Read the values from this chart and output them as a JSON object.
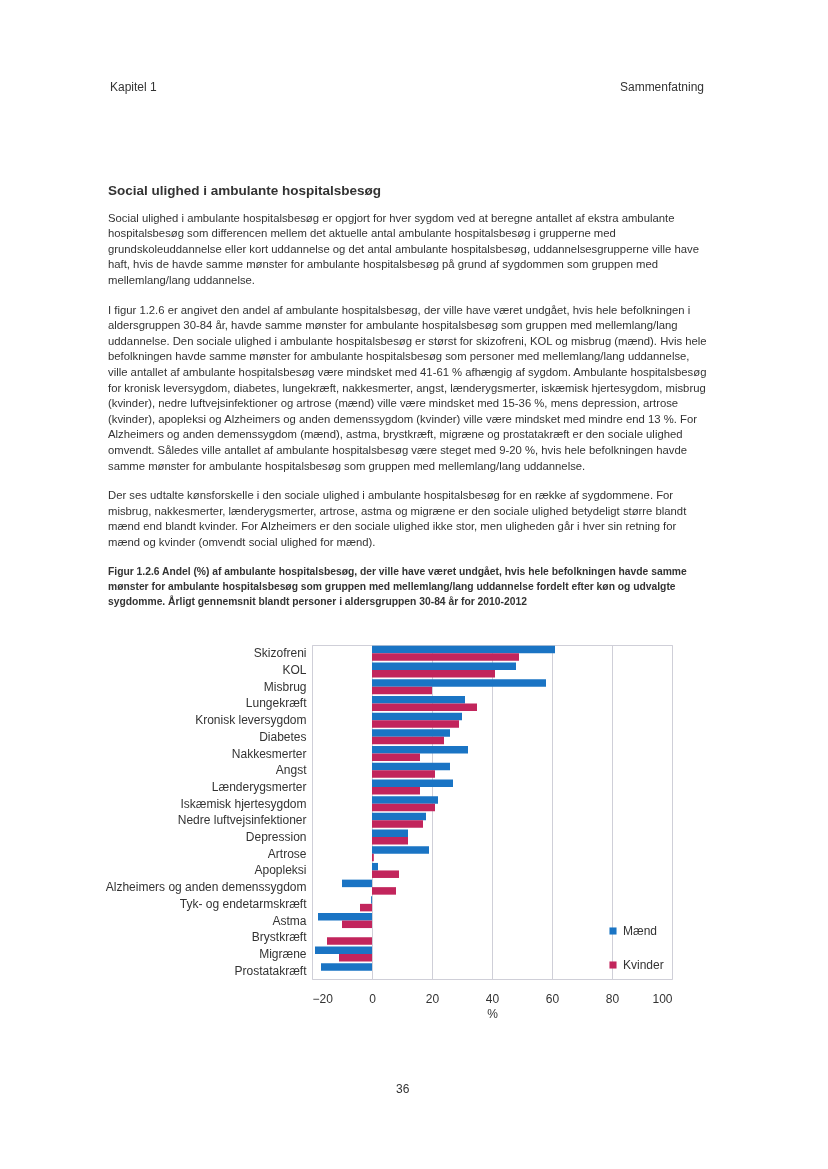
{
  "chart_data": {
    "type": "bar",
    "orientation": "horizontal",
    "title": "Figur 1.2.6   Andel (%) af ambulante hospitalsbesøg, der ville have været undgået, hvis hele befolkningen havde samme mønster for ambulante hospitalsbesøg som gruppen med mellemlang/lang uddannelse fordelt efter køn og udvalgte sygdomme. Årligt gennemsnit blandt personer i aldersgruppen 30-84 år for 2010-2012",
    "xlabel": "%",
    "annotations": [
      "Kapitel 1",
      "Sammenfatning",
      "Social ulighed i ambulante hospitalsbesøg",
      "Social ulighed i ambulante hospitalsbesøg er opgjort for hver sygdom ved at beregne antallet af ekstra ambulante hospitalsbesøg som differencen mellem det aktuelle antal ambulante hospitalsbesøg i grupperne med grundskoleuddannelse eller kort uddannelse og det antal ambulante hospitalsbesøg, uddannelsesgrupperne ville have haft, hvis de havde samme mønster for ambulante hospitalsbesøg på grund af sygdommen som gruppen med mellemlang/lang uddannelse.",
      "I figur 1.2.6 er angivet den andel af ambulante hospitalsbesøg, der ville have været undgået, hvis hele befolkningen i aldersgruppen 30-84 år, havde samme mønster for ambulante hospitalsbesøg som gruppen med mellemlang/lang uddannelse. Den sociale ulighed i ambulante hospitalsbesøg er størst for skizofreni, KOL og misbrug (mænd). Hvis hele befolkningen havde samme mønster for ambulante hospitalsbesøg som personer med mellemlang/lang uddannelse, ville antallet af ambulante hospitalsbesøg være mindsket med 41-61 % afhængig af sygdom. Ambulante hospitalsbesøg for kronisk leversygdom, diabetes, lungekræft, nakkesmerter, angst, lænderygsmerter, iskæmisk hjertesygdom, misbrug (kvinder), nedre luftvejsinfektioner og artrose (mænd) ville være mindsket med 15-36 %, mens depression, artrose (kvinder), apopleksi og Alzheimers og anden demenssygdom (kvinder) ville være mindsket med mindre end 13 %. For Alzheimers og anden demenssygdom (mænd), astma, brystkræft, migræne og prostatakræft er den sociale ulighed omvendt. Således ville antallet af ambulante hospitalsbesøg være steget med 9-20 %, hvis hele befolkningen havde samme mønster for ambulante hospitalsbesøg som gruppen med mellemlang/lang uddannelse.",
      "Der ses udtalte kønsforskelle i den sociale ulighed i ambulante hospitalsbesøg for en række af sygdommene. For misbrug, nakkesmerter, lænderygsmerter, artrose, astma og migræne er den sociale ulighed betydeligt større blandt mænd end blandt kvinder. For Alzheimers er den sociale ulighed ikke stor, men uligheden går i hver sin retning for mænd og kvinder (omvendt social ulighed for mænd).",
      "36"
    ],
    "categories": [
      "Skizofreni",
      "KOL",
      "Misbrug",
      "Lungekræft",
      "Kronisk leversygdom",
      "Diabetes",
      "Nakkesmerter",
      "Angst",
      "Lænderygsmerter",
      "Iskæmisk hjertesygdom",
      "Nedre luftvejsinfektioner",
      "Depression",
      "Artrose",
      "Apopleksi",
      "Alzheimers og anden demenssygdom",
      "Tyk- og endetarmskræft",
      "Astma",
      "Brystkræft",
      "Migræne",
      "Prostatakræft"
    ],
    "series": [
      {
        "name": "Mænd",
        "color": "#1a74c4",
        "values": [
          61,
          48,
          58,
          31,
          30,
          26,
          32,
          26,
          27,
          22,
          18,
          12,
          19,
          2,
          -10,
          -0.3,
          -18,
          null,
          -19,
          -17
        ]
      },
      {
        "name": "Kvinder",
        "color": "#c2255c",
        "values": [
          49,
          41,
          20,
          35,
          29,
          24,
          16,
          21,
          16,
          21,
          17,
          12,
          0.6,
          9,
          8,
          -4,
          -10,
          -15,
          -11,
          null
        ]
      }
    ],
    "xlim": [
      -20,
      100
    ],
    "xticks": [
      -20,
      0,
      20,
      40,
      60,
      80,
      100
    ],
    "grid": "x",
    "legend": "bottom right"
  }
}
